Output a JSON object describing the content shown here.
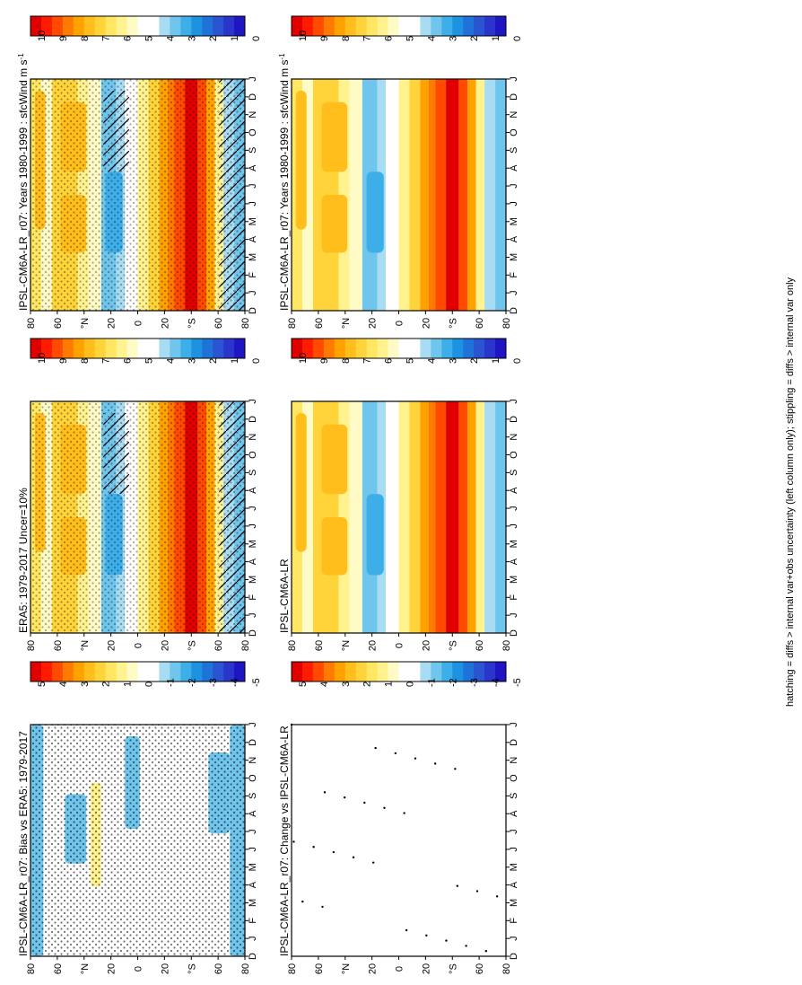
{
  "footer_note": "hatching = diffs > internal var+obs uncertainty (left column only); stippling = diffs > internal var only",
  "palettes": {
    "abs": [
      "#e00000",
      "#ff1b00",
      "#ff4a00",
      "#ff7a00",
      "#ffa200",
      "#ffbe1c",
      "#ffd43b",
      "#ffe663",
      "#fff28f",
      "#fffbc7",
      "#ffffff",
      "#ffffff",
      "#a8dcf3",
      "#6fc5ec",
      "#3eaee8",
      "#1d92e0",
      "#1f73d8",
      "#2a54d2",
      "#2a35cc",
      "#1d16c2"
    ],
    "diff": [
      "#e00000",
      "#ff1b00",
      "#ff4a00",
      "#ff7a00",
      "#ffa200",
      "#ffbe1c",
      "#ffd43b",
      "#ffe663",
      "#fff28f",
      "#fffbc7",
      "#ffffff",
      "#ffffff",
      "#a8dcf3",
      "#6fc5ec",
      "#3eaee8",
      "#1d92e0",
      "#1f73d8",
      "#2a54d2",
      "#2a35cc",
      "#1d16c2"
    ]
  },
  "panels": [
    {
      "id": "model",
      "title": "IPSL-CM6A-LR_r07: Years 1980-1999 : sfcWind m s",
      "title_sup": "-1",
      "cbar": "abs",
      "cbar_ticks": [
        "10",
        "9",
        "8",
        "7",
        "6",
        "5",
        "4",
        "3",
        "2",
        "1",
        "0"
      ]
    },
    {
      "id": "model-repeat",
      "title": "IPSL-CM6A-LR_r07: Years 1980-1999 : sfcWind m s",
      "title_sup": "-1",
      "cbar": "abs",
      "cbar_ticks": [
        "10",
        "9",
        "8",
        "7",
        "6",
        "5",
        "4",
        "3",
        "2",
        "1",
        "0"
      ]
    },
    {
      "id": "obs",
      "title": "ERA5: 1979-2017 Uncer=10%",
      "title_sup": "",
      "cbar": "abs",
      "cbar_ticks": [
        "10",
        "9",
        "8",
        "7",
        "6",
        "5",
        "4",
        "3",
        "2",
        "1",
        "0"
      ]
    },
    {
      "id": "cmip",
      "title": "IPSL-CM6A-LR",
      "title_sup": "",
      "cbar": "abs",
      "cbar_ticks": [
        "10",
        "9",
        "8",
        "7",
        "6",
        "5",
        "4",
        "3",
        "2",
        "1",
        "0"
      ]
    },
    {
      "id": "bias",
      "title": "IPSL-CM6A-LR_r07: Bias vs ERA5: 1979-2017",
      "title_sup": "",
      "cbar": "diff",
      "cbar_ticks": [
        "5",
        "4",
        "3",
        "2",
        "1",
        "0",
        "-1",
        "-2",
        "-3",
        "-4",
        "-5"
      ]
    },
    {
      "id": "change",
      "title": "IPSL-CM6A-LR_r07: Change vs IPSL-CM6A-LR",
      "title_sup": "",
      "cbar": "diff",
      "cbar_ticks": [
        "5",
        "4",
        "3",
        "2",
        "1",
        "0",
        "-1",
        "-2",
        "-3",
        "-4",
        "-5"
      ]
    }
  ],
  "axes": {
    "months": [
      "D",
      "J",
      "F",
      "M",
      "A",
      "M",
      "J",
      "J",
      "A",
      "S",
      "O",
      "N",
      "D",
      "J"
    ],
    "lat_labels": [
      "80",
      "60",
      "°N",
      "20",
      "0",
      "20",
      "°S",
      "60",
      "80"
    ]
  },
  "chart_data": {
    "type": "heatmap",
    "variable": "sfcWind",
    "units": "m s-1",
    "x": [
      "D",
      "J",
      "F",
      "M",
      "A",
      "M",
      "J",
      "J",
      "A",
      "S",
      "O",
      "N",
      "D",
      "J"
    ],
    "y": [
      "80",
      "60",
      "°N",
      "20",
      "0",
      "20",
      "°S",
      "60",
      "80"
    ],
    "levels_abs": [
      "10",
      "9",
      "8",
      "7",
      "6",
      "5",
      "4",
      "3",
      "2",
      "1",
      "0"
    ],
    "levels_diff": [
      "5",
      "4",
      "3",
      "2",
      "1",
      "0",
      "-1",
      "-2",
      "-3",
      "-4",
      "-5"
    ],
    "panels": [
      "IPSL-CM6A-LR_r07: Years 1980-1999 : sfcWind m s-1",
      "ERA5: 1979-2017 Uncer=10%",
      "IPSL-CM6A-LR",
      "IPSL-CM6A-LR_r07: Bias vs ERA5: 1979-2017",
      "IPSL-CM6A-LR_r07: Change vs IPSL-CM6A-LR"
    ],
    "grid": false
  }
}
